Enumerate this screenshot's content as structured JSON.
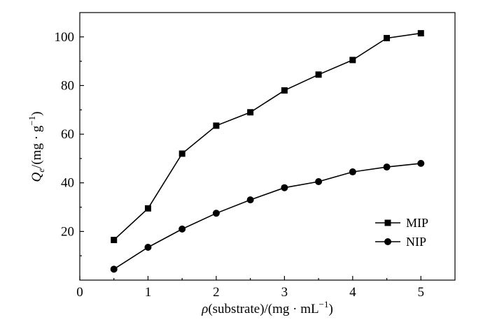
{
  "chart_data": {
    "type": "line",
    "xlabel": "ρ(substrate)/(mg · mL⁻¹)",
    "ylabel": "Qe/(mg · g⁻¹)",
    "ylabel_main": "Q",
    "ylabel_sub": "e",
    "ylabel_rest": "/(mg · g",
    "ylabel_sup": "−1",
    "ylabel_close": ")",
    "xlabel_main": "ρ",
    "xlabel_rest": "(substrate)/(mg · mL",
    "xlabel_sup": "−1",
    "xlabel_close": ")",
    "xlim": [
      0,
      5.5
    ],
    "ylim": [
      0,
      110
    ],
    "x_ticks": [
      0,
      1,
      2,
      3,
      4,
      5
    ],
    "y_ticks": [
      20,
      40,
      60,
      80,
      100
    ],
    "x_tick_labels": [
      "0",
      "1",
      "2",
      "3",
      "4",
      "5"
    ],
    "y_tick_labels": [
      "20",
      "40",
      "60",
      "80",
      "100"
    ],
    "grid": false,
    "legend_position": "bottom-right",
    "series": [
      {
        "name": "MIP",
        "marker": "square",
        "x": [
          0.5,
          1.0,
          1.5,
          2.0,
          2.5,
          3.0,
          3.5,
          4.0,
          4.5,
          5.0
        ],
        "y": [
          16.5,
          29.5,
          52,
          63.5,
          69,
          78,
          84.5,
          90.5,
          99.5,
          101.5
        ]
      },
      {
        "name": "NIP",
        "marker": "circle",
        "x": [
          0.5,
          1.0,
          1.5,
          2.0,
          2.5,
          3.0,
          3.5,
          4.0,
          4.5,
          5.0
        ],
        "y": [
          4.5,
          13.5,
          21,
          27.5,
          33,
          38,
          40.5,
          44.5,
          46.5,
          48
        ]
      }
    ]
  }
}
